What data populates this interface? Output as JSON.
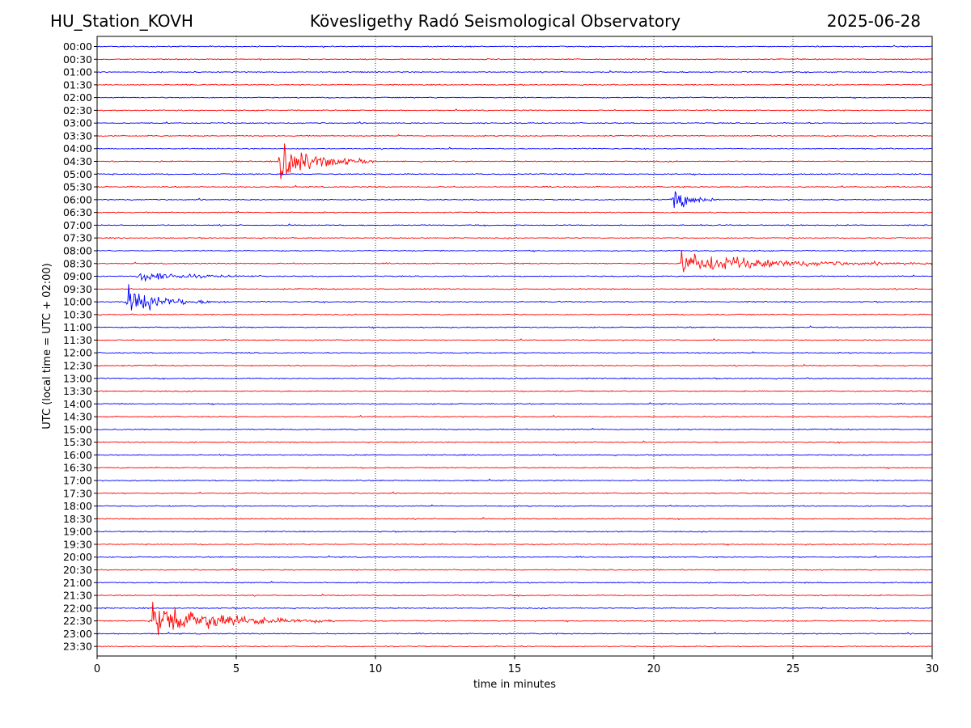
{
  "header": {
    "station": "HU_Station_KOVH",
    "observatory": "Kövesligethy Radó Seismological Observatory",
    "date": "2025-06-28"
  },
  "chart_data": {
    "type": "line",
    "title": "Kövesligethy Radó Seismological Observatory",
    "xlabel": "time in minutes",
    "ylabel": "UTC (local time = UTC + 02:00)",
    "xlim": [
      0,
      30
    ],
    "xticks": [
      0,
      5,
      10,
      15,
      20,
      25,
      30
    ],
    "grid": "vertical dotted lines at 5-minute intervals",
    "row_labels": [
      "00:00",
      "00:30",
      "01:00",
      "01:30",
      "02:00",
      "02:30",
      "03:00",
      "03:30",
      "04:00",
      "04:30",
      "05:00",
      "05:30",
      "06:00",
      "06:30",
      "07:00",
      "07:30",
      "08:00",
      "08:30",
      "09:00",
      "09:30",
      "10:00",
      "10:30",
      "11:00",
      "11:30",
      "12:00",
      "12:30",
      "13:00",
      "13:30",
      "14:00",
      "14:30",
      "15:00",
      "15:30",
      "16:00",
      "16:30",
      "17:00",
      "17:30",
      "18:00",
      "18:30",
      "19:00",
      "19:30",
      "20:00",
      "20:30",
      "21:00",
      "21:30",
      "22:00",
      "22:30",
      "23:00",
      "23:30"
    ],
    "row_colors": [
      "#0000ff",
      "#ff0000"
    ],
    "events": [
      {
        "row": "04:30",
        "onset_min": 6.6,
        "duration_min": 3.4,
        "peak": 1.0
      },
      {
        "row": "06:00",
        "onset_min": 20.7,
        "duration_min": 1.8,
        "peak": 0.55
      },
      {
        "row": "08:30",
        "onset_min": 21.0,
        "duration_min": 9.0,
        "peak": 0.45
      },
      {
        "row": "09:00",
        "onset_min": 1.5,
        "duration_min": 4.5,
        "peak": 0.22
      },
      {
        "row": "10:00",
        "onset_min": 1.1,
        "duration_min": 3.5,
        "peak": 0.6
      },
      {
        "row": "22:30",
        "onset_min": 2.0,
        "duration_min": 6.5,
        "peak": 0.85
      }
    ]
  }
}
